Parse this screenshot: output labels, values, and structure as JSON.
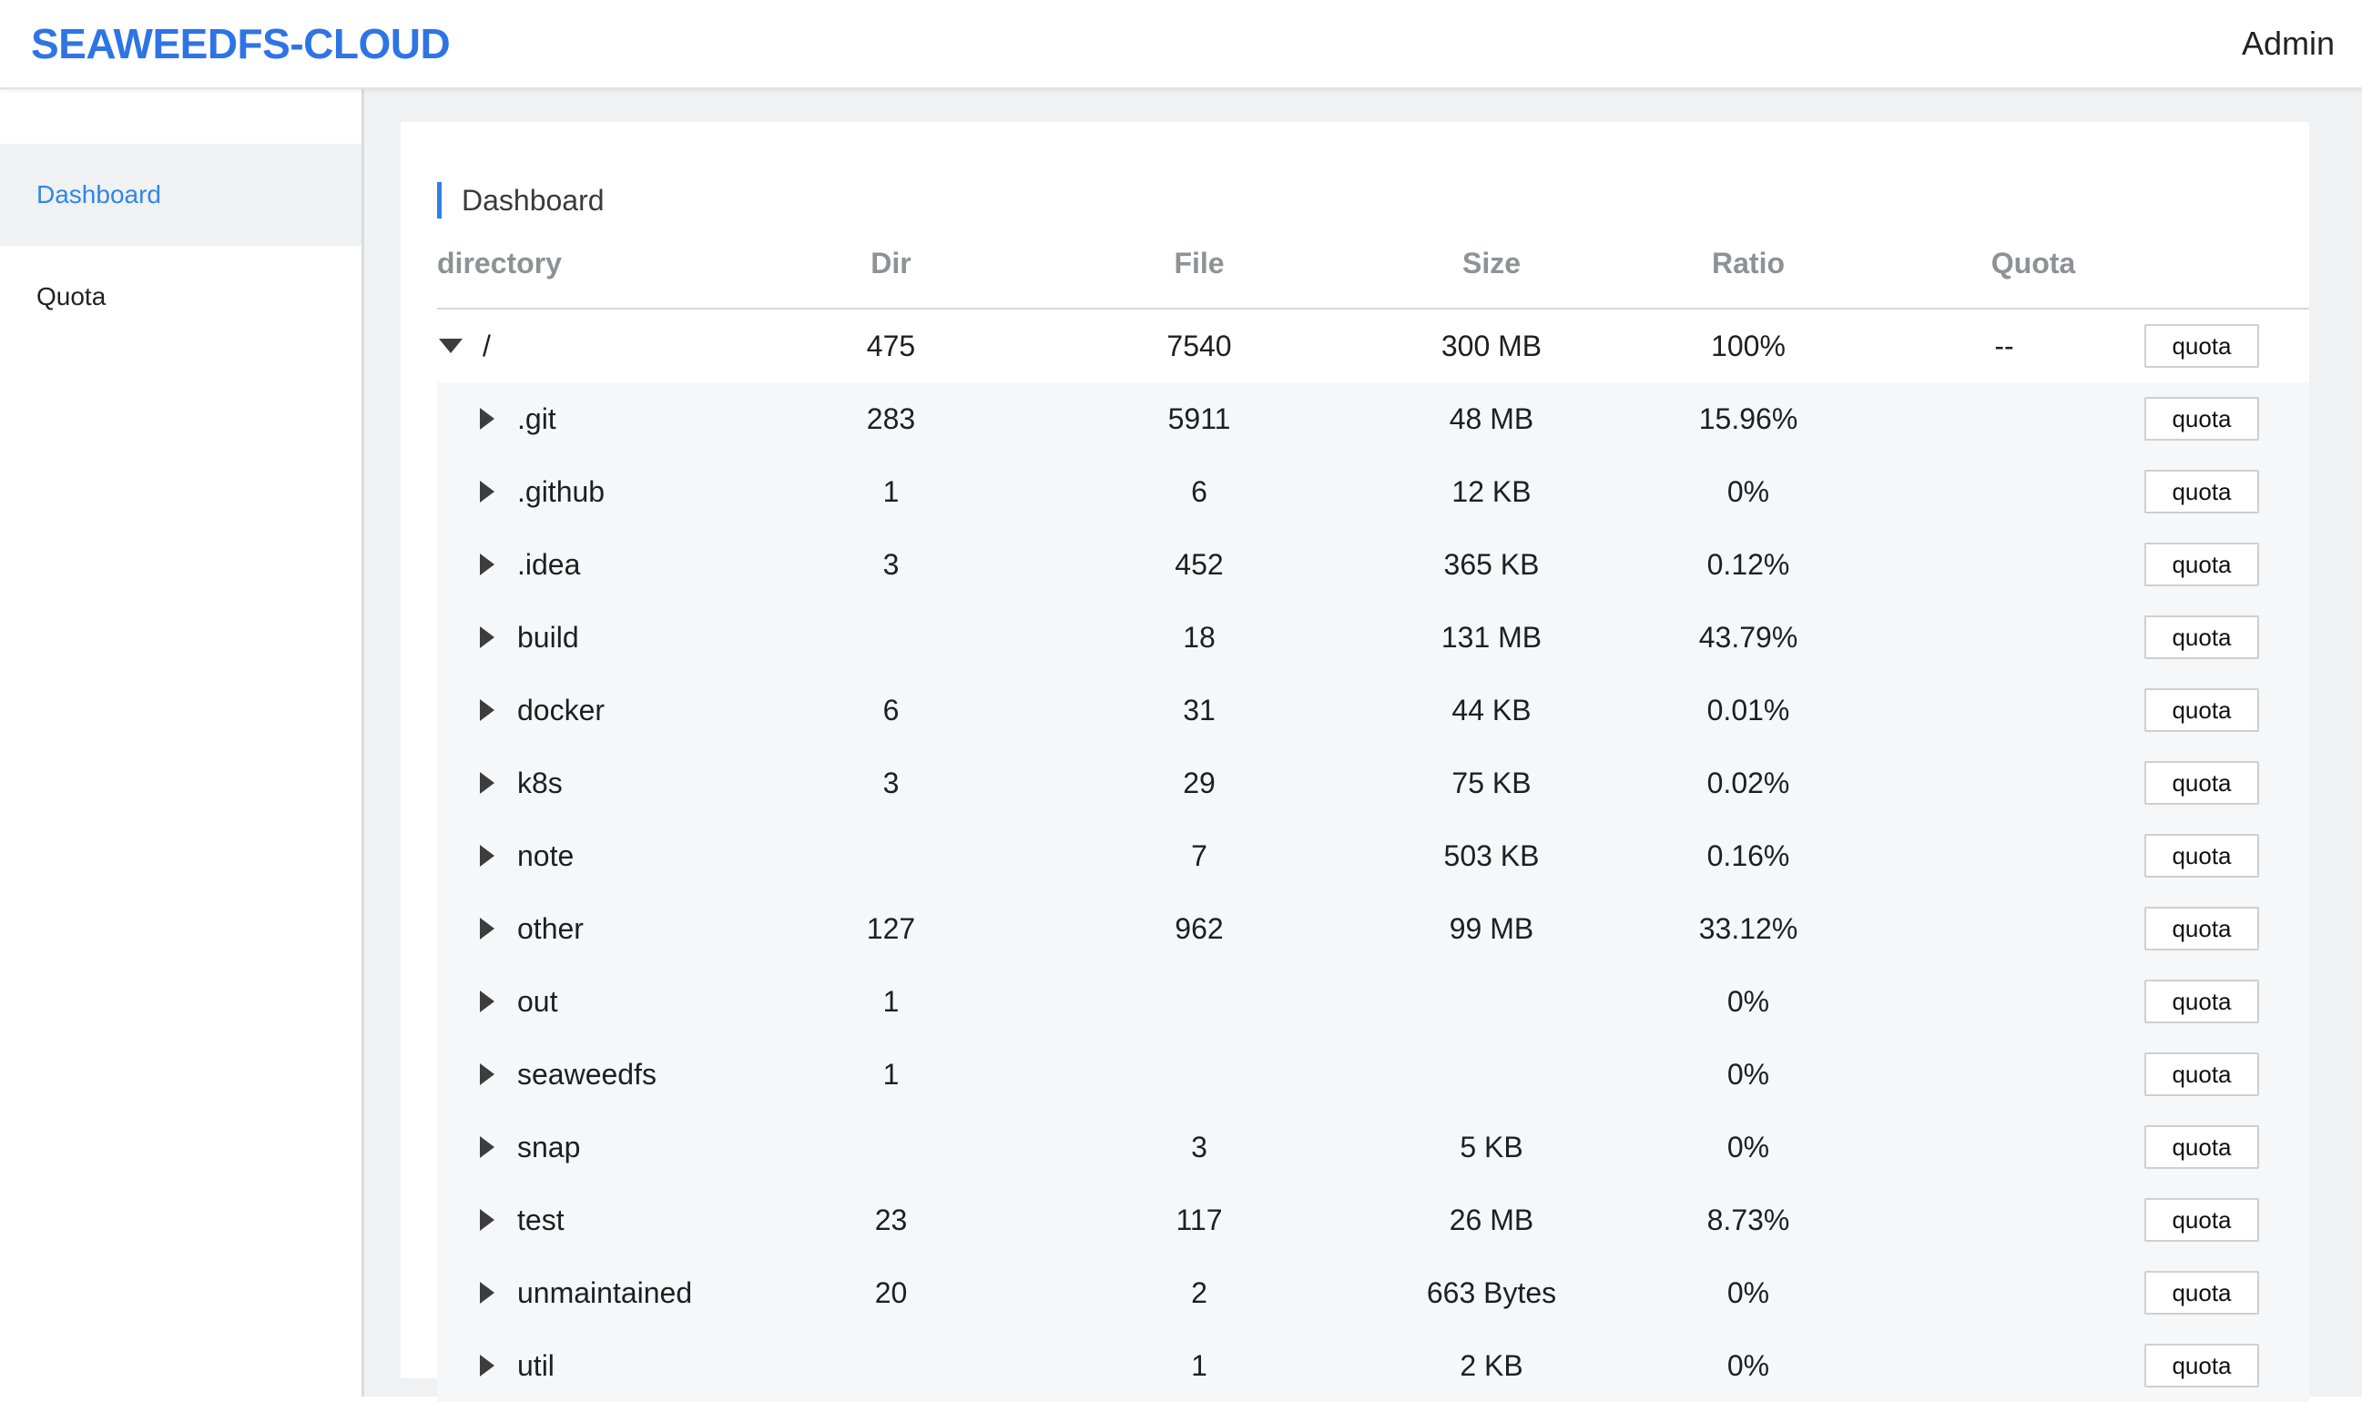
{
  "header": {
    "logo": "SEAWEEDFS-CLOUD",
    "user": "Admin"
  },
  "sidebar": {
    "items": [
      {
        "label": "Dashboard",
        "active": true
      },
      {
        "label": "Quota",
        "active": false
      }
    ]
  },
  "main": {
    "title": "Dashboard",
    "columns": {
      "directory": "directory",
      "dir": "Dir",
      "file": "File",
      "size": "Size",
      "ratio": "Ratio",
      "quota": "Quota"
    },
    "button_label": "quota",
    "root": {
      "name": "/",
      "dir": "475",
      "file": "7540",
      "size": "300 MB",
      "ratio": "100%",
      "quota": "--",
      "expanded": true
    },
    "rows": [
      {
        "name": ".git",
        "dir": "283",
        "file": "5911",
        "size": "48 MB",
        "ratio": "15.96%",
        "quota": ""
      },
      {
        "name": ".github",
        "dir": "1",
        "file": "6",
        "size": "12 KB",
        "ratio": "0%",
        "quota": ""
      },
      {
        "name": ".idea",
        "dir": "3",
        "file": "452",
        "size": "365 KB",
        "ratio": "0.12%",
        "quota": ""
      },
      {
        "name": "build",
        "dir": "",
        "file": "18",
        "size": "131 MB",
        "ratio": "43.79%",
        "quota": ""
      },
      {
        "name": "docker",
        "dir": "6",
        "file": "31",
        "size": "44 KB",
        "ratio": "0.01%",
        "quota": ""
      },
      {
        "name": "k8s",
        "dir": "3",
        "file": "29",
        "size": "75 KB",
        "ratio": "0.02%",
        "quota": ""
      },
      {
        "name": "note",
        "dir": "",
        "file": "7",
        "size": "503 KB",
        "ratio": "0.16%",
        "quota": ""
      },
      {
        "name": "other",
        "dir": "127",
        "file": "962",
        "size": "99 MB",
        "ratio": "33.12%",
        "quota": ""
      },
      {
        "name": "out",
        "dir": "1",
        "file": "",
        "size": "",
        "ratio": "0%",
        "quota": ""
      },
      {
        "name": "seaweedfs",
        "dir": "1",
        "file": "",
        "size": "",
        "ratio": "0%",
        "quota": ""
      },
      {
        "name": "snap",
        "dir": "",
        "file": "3",
        "size": "5 KB",
        "ratio": "0%",
        "quota": ""
      },
      {
        "name": "test",
        "dir": "23",
        "file": "117",
        "size": "26 MB",
        "ratio": "8.73%",
        "quota": ""
      },
      {
        "name": "unmaintained",
        "dir": "20",
        "file": "2",
        "size": "663 Bytes",
        "ratio": "0%",
        "quota": ""
      },
      {
        "name": "util",
        "dir": "",
        "file": "1",
        "size": "2 KB",
        "ratio": "0%",
        "quota": ""
      }
    ]
  },
  "colors": {
    "brand": "#2f74e4",
    "active_nav": "#2f86e8",
    "title_accent": "#2f7fe8"
  },
  "icons": {
    "expanded": "caret-down-icon",
    "collapsed": "caret-right-icon"
  }
}
